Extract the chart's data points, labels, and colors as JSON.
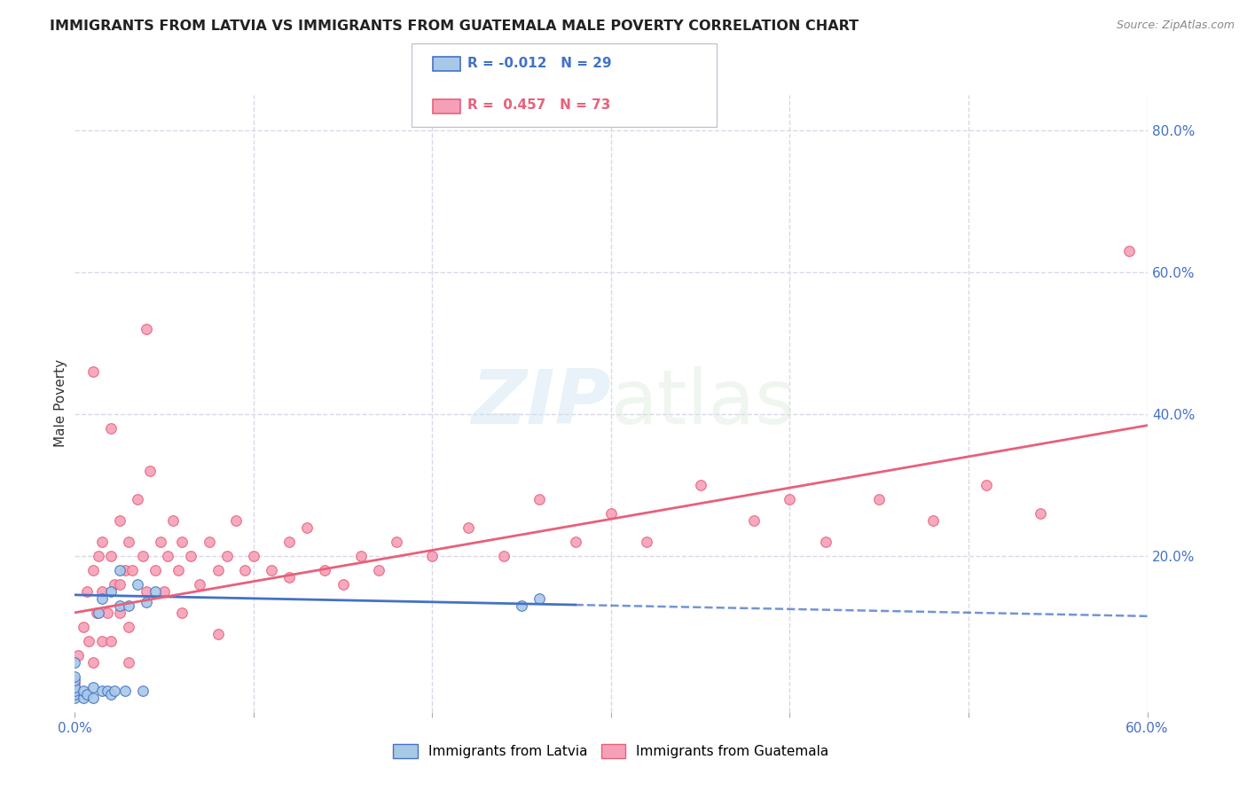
{
  "title": "IMMIGRANTS FROM LATVIA VS IMMIGRANTS FROM GUATEMALA MALE POVERTY CORRELATION CHART",
  "source": "Source: ZipAtlas.com",
  "ylabel": "Male Poverty",
  "xlim": [
    0.0,
    0.6
  ],
  "ylim": [
    -0.02,
    0.85
  ],
  "x_ticks": [
    0.0,
    0.1,
    0.2,
    0.3,
    0.4,
    0.5,
    0.6
  ],
  "y_tick_vals_right": [
    0.8,
    0.6,
    0.4,
    0.2
  ],
  "y_tick_labels_right": [
    "80.0%",
    "60.0%",
    "40.0%",
    "20.0%"
  ],
  "latvia_R": -0.012,
  "latvia_N": 29,
  "guatemala_R": 0.457,
  "guatemala_N": 73,
  "latvia_color": "#a8c8e8",
  "guatemala_color": "#f5a0b8",
  "latvia_line_color": "#4472c4",
  "guatemala_line_color": "#e8607a",
  "background_color": "#ffffff",
  "grid_color": "#d8d8e8",
  "latvia_x": [
    0.0,
    0.0,
    0.0,
    0.0,
    0.0,
    0.0,
    0.0,
    0.005,
    0.005,
    0.007,
    0.01,
    0.01,
    0.013,
    0.015,
    0.015,
    0.018,
    0.02,
    0.02,
    0.022,
    0.025,
    0.025,
    0.028,
    0.03,
    0.035,
    0.038,
    0.04,
    0.045,
    0.25,
    0.26
  ],
  "latvia_y": [
    0.0,
    0.005,
    0.01,
    0.015,
    0.025,
    0.03,
    0.05,
    0.0,
    0.01,
    0.005,
    0.0,
    0.015,
    0.12,
    0.01,
    0.14,
    0.01,
    0.005,
    0.15,
    0.01,
    0.13,
    0.18,
    0.01,
    0.13,
    0.16,
    0.01,
    0.135,
    0.15,
    0.13,
    0.14
  ],
  "guatemala_x": [
    0.0,
    0.002,
    0.005,
    0.007,
    0.008,
    0.01,
    0.01,
    0.012,
    0.013,
    0.015,
    0.015,
    0.015,
    0.018,
    0.02,
    0.02,
    0.022,
    0.025,
    0.025,
    0.028,
    0.03,
    0.03,
    0.032,
    0.035,
    0.038,
    0.04,
    0.042,
    0.045,
    0.048,
    0.05,
    0.052,
    0.055,
    0.058,
    0.06,
    0.065,
    0.07,
    0.075,
    0.08,
    0.085,
    0.09,
    0.095,
    0.1,
    0.11,
    0.12,
    0.13,
    0.14,
    0.15,
    0.16,
    0.17,
    0.18,
    0.2,
    0.22,
    0.24,
    0.26,
    0.28,
    0.3,
    0.32,
    0.35,
    0.38,
    0.4,
    0.42,
    0.45,
    0.48,
    0.51,
    0.54,
    0.01,
    0.02,
    0.025,
    0.03,
    0.04,
    0.06,
    0.08,
    0.12,
    0.59
  ],
  "guatemala_y": [
    0.02,
    0.06,
    0.1,
    0.15,
    0.08,
    0.05,
    0.18,
    0.12,
    0.2,
    0.08,
    0.15,
    0.22,
    0.12,
    0.08,
    0.2,
    0.16,
    0.12,
    0.25,
    0.18,
    0.1,
    0.22,
    0.18,
    0.28,
    0.2,
    0.15,
    0.32,
    0.18,
    0.22,
    0.15,
    0.2,
    0.25,
    0.18,
    0.22,
    0.2,
    0.16,
    0.22,
    0.18,
    0.2,
    0.25,
    0.18,
    0.2,
    0.18,
    0.22,
    0.24,
    0.18,
    0.16,
    0.2,
    0.18,
    0.22,
    0.2,
    0.24,
    0.2,
    0.28,
    0.22,
    0.26,
    0.22,
    0.3,
    0.25,
    0.28,
    0.22,
    0.28,
    0.25,
    0.3,
    0.26,
    0.46,
    0.38,
    0.16,
    0.05,
    0.52,
    0.12,
    0.09,
    0.17,
    0.63
  ]
}
